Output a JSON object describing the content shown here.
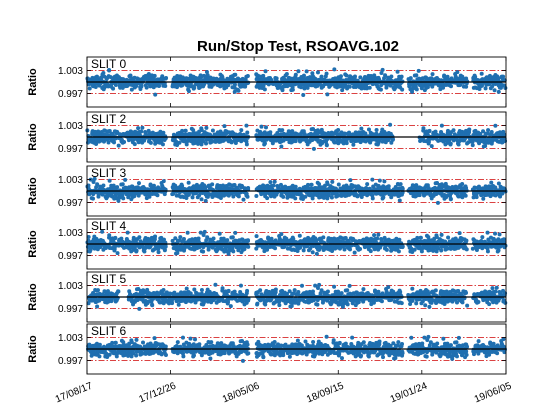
{
  "chart_data": {
    "type": "scatter",
    "title": "Run/Stop Test, RSOAVG.102",
    "ylabel": "Ratio",
    "x_tick_labels": [
      "17/08/17",
      "17/12/26",
      "18/05/06",
      "18/09/15",
      "19/01/24",
      "19/06/05"
    ],
    "x_tick_dates": [
      "2017-08-17",
      "2017-12-26",
      "2018-05-06",
      "2018-09-15",
      "2019-01-24",
      "2019-06-05"
    ],
    "xlim": [
      "2017-08-17",
      "2019-06-05"
    ],
    "y_tick_labels": [
      "1.003",
      "0.997"
    ],
    "y_ticks": [
      1.003,
      0.997
    ],
    "ylim": [
      0.9935,
      1.0065
    ],
    "limit_lines": [
      1.003,
      0.997
    ],
    "center_line": 1.0,
    "colors": {
      "points": "#1f6fb0",
      "limit": "#d62728",
      "center": "#000000"
    },
    "panels": [
      {
        "label": "SLIT 0",
        "gaps": [
          [
            "2017-12-19",
            "2017-12-29"
          ],
          [
            "2018-04-27",
            "2018-05-09"
          ],
          [
            "2018-12-25",
            "2019-01-03"
          ],
          [
            "2019-04-05",
            "2019-04-14"
          ]
        ]
      },
      {
        "label": "SLIT 2",
        "gaps": [
          [
            "2017-12-19",
            "2017-12-29"
          ],
          [
            "2018-04-27",
            "2018-05-09"
          ],
          [
            "2018-12-10",
            "2019-01-20"
          ]
        ]
      },
      {
        "label": "SLIT 3",
        "gaps": [
          [
            "2017-12-19",
            "2017-12-29"
          ],
          [
            "2018-04-27",
            "2018-05-09"
          ],
          [
            "2018-12-25",
            "2019-01-03"
          ],
          [
            "2019-04-05",
            "2019-04-14"
          ]
        ]
      },
      {
        "label": "SLIT 4",
        "gaps": [
          [
            "2017-12-19",
            "2017-12-29"
          ],
          [
            "2018-04-27",
            "2018-05-09"
          ],
          [
            "2018-12-25",
            "2019-01-03"
          ],
          [
            "2019-04-05",
            "2019-04-14"
          ]
        ]
      },
      {
        "label": "SLIT 5",
        "gaps": [
          [
            "2017-10-05",
            "2017-10-20"
          ],
          [
            "2018-04-27",
            "2018-05-09"
          ],
          [
            "2018-12-25",
            "2019-01-03"
          ],
          [
            "2019-04-05",
            "2019-04-14"
          ]
        ]
      },
      {
        "label": "SLIT 6",
        "gaps": [
          [
            "2017-12-19",
            "2017-12-29"
          ],
          [
            "2018-04-27",
            "2018-05-09"
          ],
          [
            "2018-12-25",
            "2019-01-03"
          ],
          [
            "2019-04-05",
            "2019-04-14"
          ]
        ]
      }
    ]
  }
}
